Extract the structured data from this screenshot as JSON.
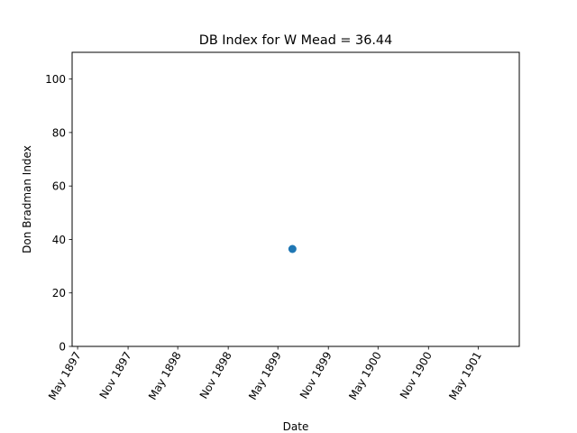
{
  "chart_data": {
    "type": "scatter",
    "title": "DB Index for W Mead = 36.44",
    "xlabel": "Date",
    "ylabel": "Don Bradman Index",
    "x_ticks": [
      "May 1897",
      "Nov 1897",
      "May 1898",
      "Nov 1898",
      "May 1899",
      "Nov 1899",
      "May 1900",
      "Nov 1900",
      "May 1901"
    ],
    "y_ticks": [
      "0",
      "20",
      "40",
      "60",
      "80",
      "100"
    ],
    "ylim": [
      0,
      110
    ],
    "xlim": [
      "1897-04-11",
      "1901-09-28"
    ],
    "grid": false,
    "series": [
      {
        "color": "#1f77b4",
        "points": [
          {
            "x": "1899-06-23",
            "y": 36.44
          }
        ]
      }
    ]
  }
}
